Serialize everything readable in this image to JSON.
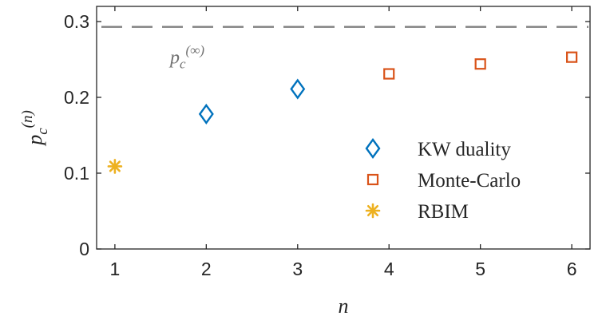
{
  "chart_data": {
    "type": "scatter",
    "xlabel": "n",
    "ylabel": {
      "base": "p",
      "subscript": "c",
      "superscript": "(n)"
    },
    "xlim": [
      0.8,
      6.2
    ],
    "ylim": [
      0,
      0.32
    ],
    "x_ticks": [
      1,
      2,
      3,
      4,
      5,
      6
    ],
    "y_ticks": [
      0,
      0.1,
      0.2,
      0.3
    ],
    "x_tick_labels": [
      "1",
      "2",
      "3",
      "4",
      "5",
      "6"
    ],
    "y_tick_labels": [
      "0",
      "0.1",
      "0.2",
      "0.3"
    ],
    "grid": false,
    "legend_position": "bottom-right",
    "series": [
      {
        "name": "KW duality",
        "marker": "diamond",
        "color": "#0072BD",
        "x": [
          2,
          3
        ],
        "y": [
          0.178,
          0.211
        ]
      },
      {
        "name": "Monte-Carlo",
        "marker": "square",
        "color": "#D95319",
        "x": [
          4,
          5,
          6
        ],
        "y": [
          0.231,
          0.244,
          0.253
        ]
      },
      {
        "name": "RBIM",
        "marker": "asterisk",
        "color": "#EDB120",
        "x": [
          1
        ],
        "y": [
          0.109
        ]
      }
    ],
    "reference_line": {
      "y": 0.293,
      "style": "dashed",
      "color": "#808080",
      "label": {
        "base": "p",
        "subscript": "c",
        "superscript": "(∞)"
      }
    }
  }
}
